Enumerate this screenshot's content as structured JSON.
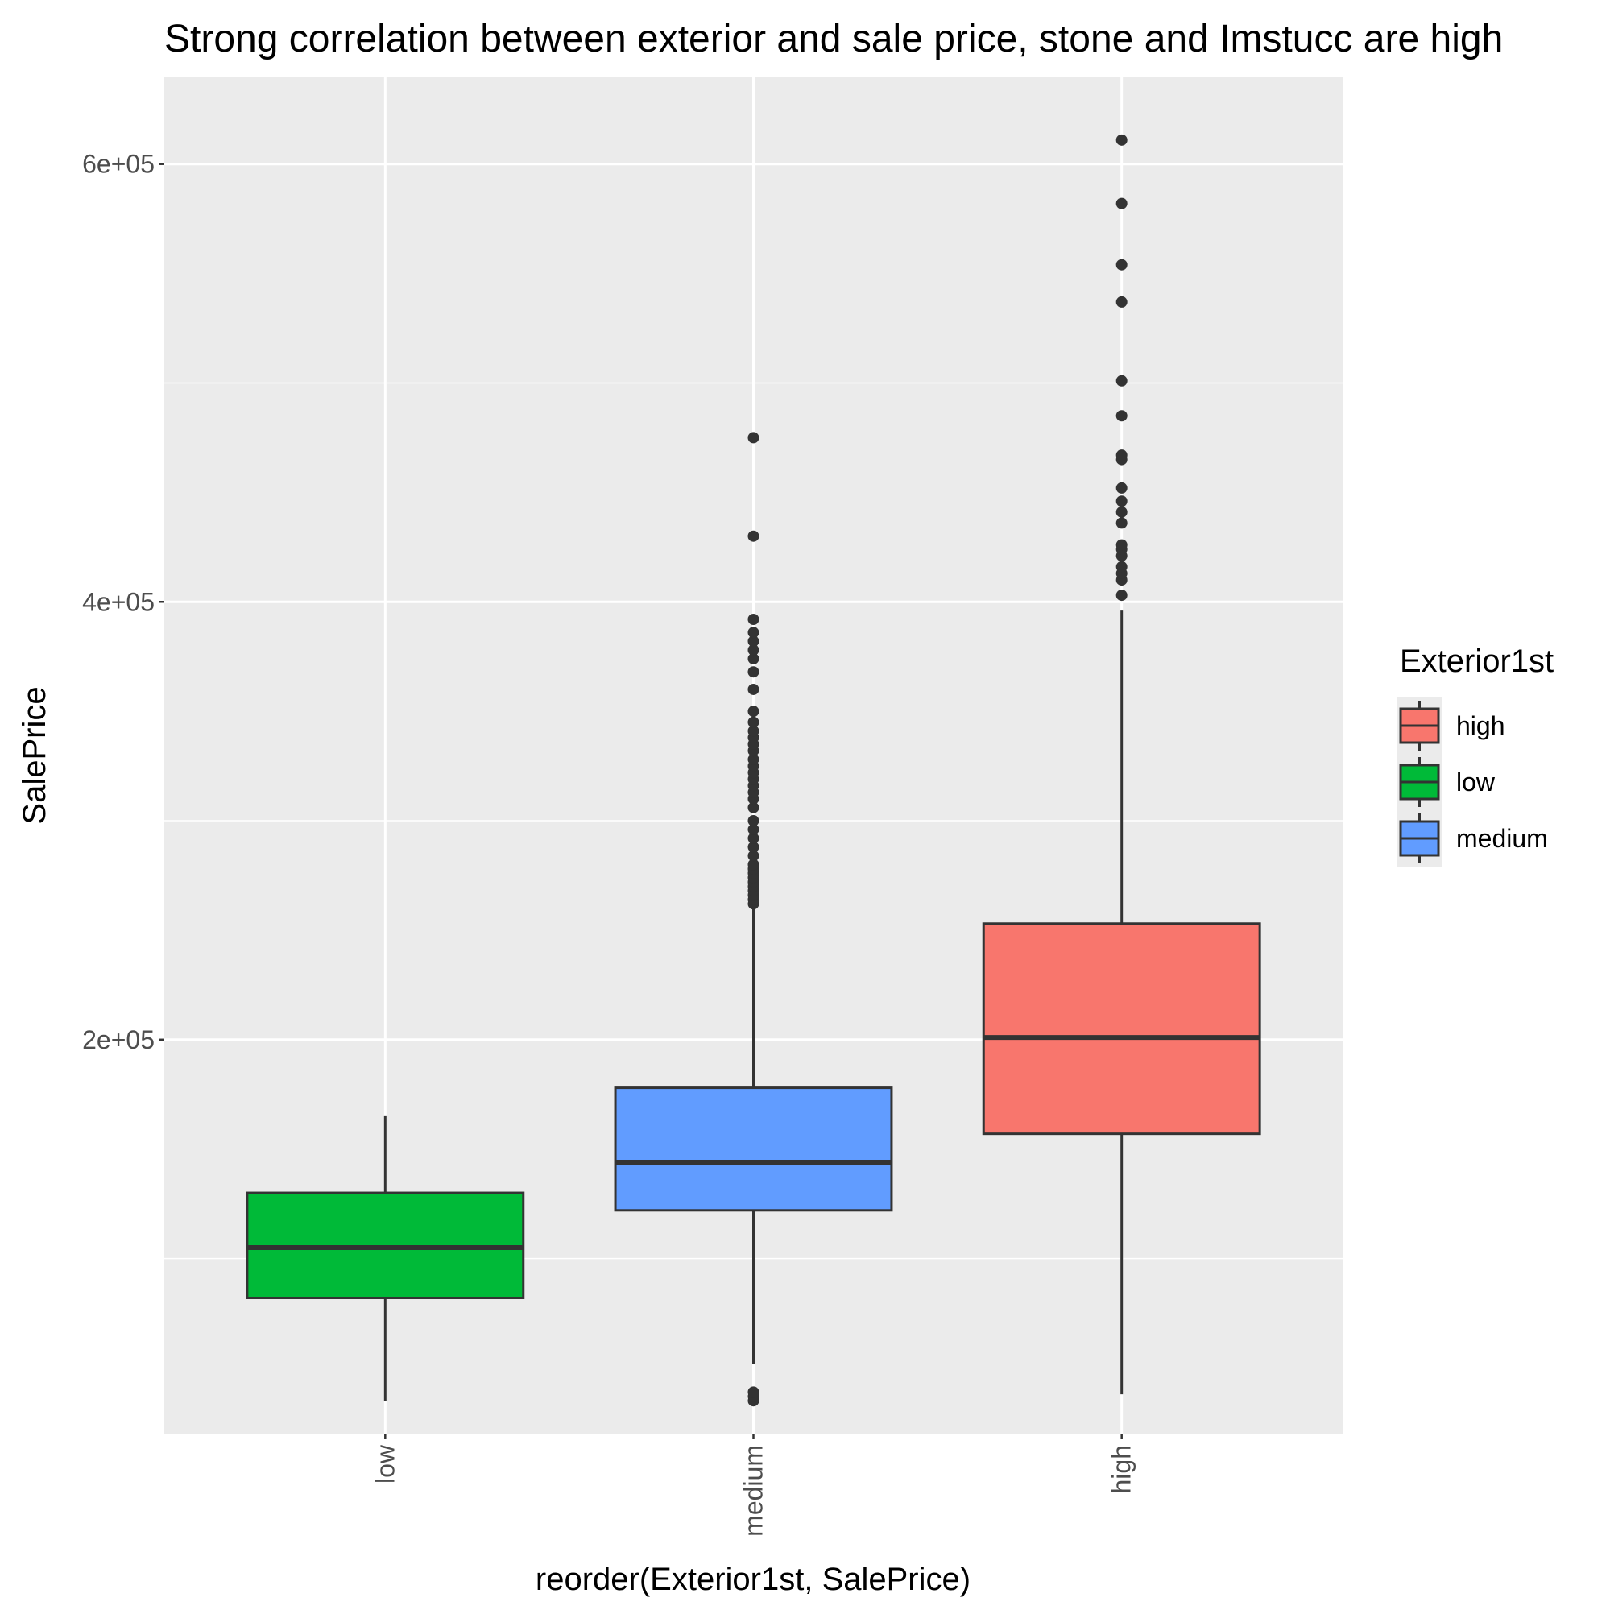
{
  "chart_data": {
    "type": "boxplot",
    "title": "Strong correlation between exterior and sale price, stone and Imstucc are high",
    "xlabel": "reorder(Exterior1st, SalePrice)",
    "ylabel": "SalePrice",
    "ylim": [
      20000,
      640000
    ],
    "yticks": [
      200000,
      400000,
      600000
    ],
    "ytick_labels": [
      "2e+05",
      "4e+05",
      "6e+05"
    ],
    "categories": [
      "low",
      "medium",
      "high"
    ],
    "legend_title": "Exterior1st",
    "legend_entries": [
      "high",
      "low",
      "medium"
    ],
    "legend_position": "right",
    "grid": true,
    "colors": {
      "high": "#F8766D",
      "low": "#00BA38",
      "medium": "#619CFF",
      "panel": "#EBEBEB",
      "grid": "#FFFFFF",
      "outline": "#333333"
    },
    "boxes": [
      {
        "category": "low",
        "group": "low",
        "whisker_low": 35000,
        "q1": 82000,
        "median": 105000,
        "q3": 130000,
        "whisker_high": 165000,
        "outliers": []
      },
      {
        "category": "medium",
        "group": "medium",
        "whisker_low": 52000,
        "q1": 122000,
        "median": 144000,
        "q3": 178000,
        "whisker_high": 261000,
        "outliers": [
          35000,
          37000,
          39000,
          262000,
          264000,
          266000,
          268000,
          270000,
          272000,
          274000,
          276000,
          278000,
          280000,
          284000,
          288000,
          292000,
          296000,
          300000,
          306000,
          310000,
          313000,
          316000,
          319000,
          322000,
          325000,
          328000,
          332000,
          335000,
          338000,
          341000,
          345000,
          350000,
          360000,
          368000,
          374000,
          378000,
          382000,
          386000,
          392000,
          430000,
          475000
        ]
      },
      {
        "category": "high",
        "group": "high",
        "whisker_low": 38000,
        "q1": 157000,
        "median": 201000,
        "q3": 253000,
        "whisker_high": 396000,
        "outliers": [
          403000,
          410000,
          413000,
          416000,
          421000,
          424000,
          426000,
          436000,
          441000,
          446000,
          452000,
          465000,
          467000,
          485000,
          501000,
          537000,
          554000,
          582000,
          611000
        ]
      }
    ]
  }
}
